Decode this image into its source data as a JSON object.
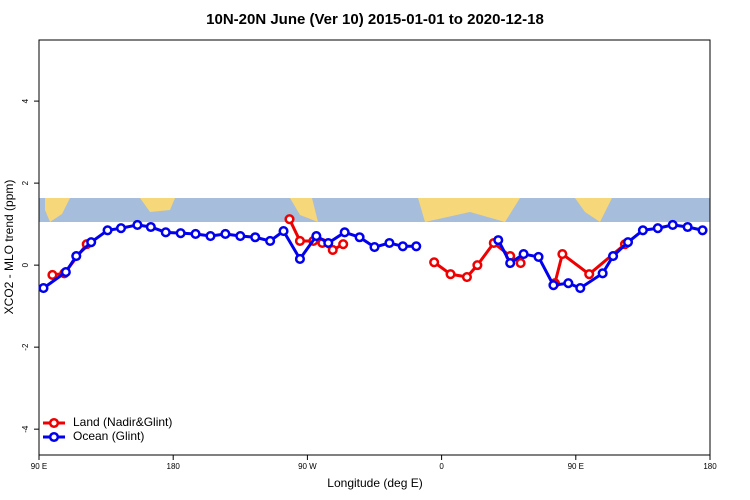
{
  "chart_data": {
    "type": "line",
    "title": "10N-20N June (Ver 10)   2015-01-01 to 2020-12-18",
    "x_label": "Longitude (deg E)",
    "y_label": "XCO2 - MLO trend (ppm)",
    "xlim": [
      90,
      540
    ],
    "ylim": [
      -4.63,
      5.49
    ],
    "xticks": [
      {
        "value": 90,
        "label": "90 E"
      },
      180,
      {
        "value": 270,
        "label": "90 W"
      },
      {
        "value": 360,
        "label": "0"
      },
      {
        "value": 450,
        "label": "90 E"
      },
      {
        "value": 540,
        "label": "180"
      }
    ],
    "yticks": [
      -4,
      -2,
      0,
      2,
      4
    ],
    "legend": "bottom-left",
    "series": [
      {
        "name": "Land (Nadir&Glint)",
        "color": "#ee0000",
        "x": [
          99,
          107,
          122,
          null,
          258,
          265,
          274,
          280,
          287,
          294,
          null,
          355,
          366,
          377,
          384,
          395,
          406,
          413,
          null,
          436,
          441,
          459,
          483
        ],
        "values": [
          -0.24,
          -0.2,
          0.51,
          null,
          1.12,
          0.59,
          0.59,
          0.54,
          0.37,
          0.51,
          null,
          0.07,
          -0.22,
          -0.29,
          0.0,
          0.54,
          0.22,
          0.05,
          null,
          -0.44,
          0.27,
          -0.22,
          0.51
        ]
      },
      {
        "name": "Ocean (Glint)",
        "color": "#0000ee",
        "x": [
          93,
          108,
          115,
          125,
          136,
          145,
          156,
          165,
          175,
          185,
          195,
          205,
          215,
          225,
          235,
          245,
          254,
          265,
          276,
          284,
          295,
          305,
          315,
          325,
          334,
          343,
          null,
          398,
          406,
          415,
          425,
          435,
          445,
          453,
          468,
          475,
          485,
          495,
          505,
          515,
          525,
          535
        ],
        "values": [
          -0.56,
          -0.17,
          0.22,
          0.56,
          0.85,
          0.9,
          0.98,
          0.93,
          0.8,
          0.78,
          0.76,
          0.71,
          0.76,
          0.71,
          0.68,
          0.59,
          0.83,
          0.15,
          0.71,
          0.54,
          0.8,
          0.68,
          0.44,
          0.54,
          0.46,
          0.46,
          null,
          0.61,
          0.05,
          0.27,
          0.2,
          -0.49,
          -0.44,
          -0.56,
          -0.2,
          0.22,
          0.56,
          0.85,
          0.9,
          0.98,
          0.93,
          0.85
        ]
      }
    ]
  }
}
